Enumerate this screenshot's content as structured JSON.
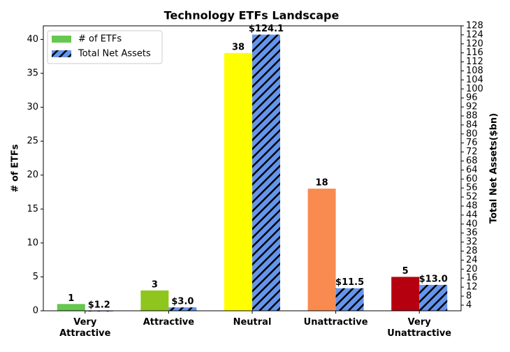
{
  "chart_data": {
    "type": "bar",
    "title": "Technology ETFs Landscape",
    "categories": [
      "Very\nAttractive",
      "Attractive",
      "Neutral",
      "Unattractive",
      "Very\nUnattractive"
    ],
    "series": [
      {
        "name": "# of ETFs",
        "colors": [
          "#66c84f",
          "#8ec61e",
          "#ffff00",
          "#f98b50",
          "#b5000f"
        ],
        "values": [
          1,
          3,
          38,
          18,
          5
        ]
      },
      {
        "name": "Total Net Assets",
        "color": "#6495ed",
        "hatch": true,
        "axis": "y2",
        "values": [
          1.2,
          3.0,
          124.1,
          11.5,
          13.0
        ],
        "value_labels": [
          "$1.2",
          "$3.0",
          "$124.1",
          "$11.5",
          "$13.0"
        ]
      }
    ],
    "ylabel": "# of ETFs",
    "y2label": "Total Net Assets($bn)",
    "ylim": [
      0,
      42
    ],
    "yticks": [
      0,
      5,
      10,
      15,
      20,
      25,
      30,
      35,
      40
    ],
    "y2lim": [
      1.5,
      128
    ],
    "y2ticks": [
      4,
      8,
      12,
      16,
      20,
      24,
      28,
      32,
      36,
      40,
      44,
      48,
      52,
      56,
      60,
      64,
      68,
      72,
      76,
      80,
      84,
      88,
      92,
      96,
      100,
      104,
      108,
      112,
      116,
      120,
      124,
      128
    ],
    "legend": "upper left"
  }
}
